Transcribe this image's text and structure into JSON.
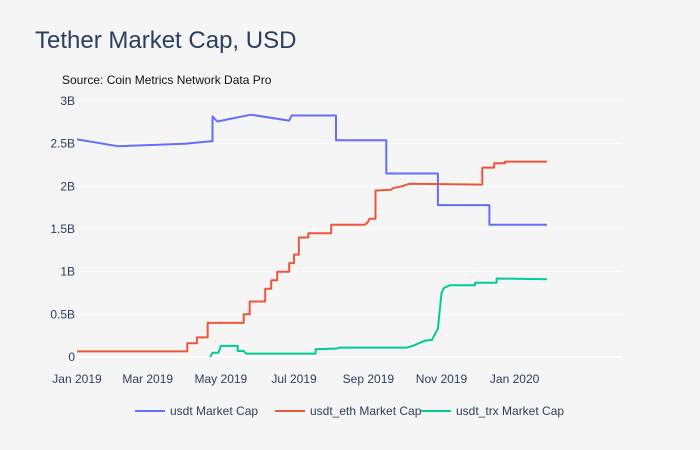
{
  "chart_data": {
    "type": "line",
    "title": "Tether Market Cap, USD",
    "annotation": "Source: Coin Metrics Network Data Pro",
    "xlabel": "",
    "ylabel": "",
    "xlim": [
      "2019-01-01",
      "2020-01-28"
    ],
    "ylim": [
      0,
      3000000000
    ],
    "x_ticks": [
      {
        "date": "2019-01-01",
        "label": "Jan 2019"
      },
      {
        "date": "2019-03-01",
        "label": "Mar 2019"
      },
      {
        "date": "2019-05-01",
        "label": "May 2019"
      },
      {
        "date": "2019-07-01",
        "label": "Jul 2019"
      },
      {
        "date": "2019-09-01",
        "label": "Sep 2019"
      },
      {
        "date": "2019-11-01",
        "label": "Nov 2019"
      },
      {
        "date": "2020-01-01",
        "label": "Jan 2020"
      }
    ],
    "y_ticks": [
      {
        "value": 0,
        "label": "0"
      },
      {
        "value": 500000000,
        "label": "0.5B"
      },
      {
        "value": 1000000000,
        "label": "1B"
      },
      {
        "value": 1500000000,
        "label": "1.5B"
      },
      {
        "value": 2000000000,
        "label": "2B"
      },
      {
        "value": 2500000000,
        "label": "2.5B"
      },
      {
        "value": 3000000000,
        "label": "3B"
      }
    ],
    "grid": true,
    "legend_position": "bottom",
    "series": [
      {
        "name": "usdt Market Cap",
        "color": "#636efa",
        "points": [
          [
            "2019-01-01",
            2550000000.0
          ],
          [
            "2019-02-04",
            2470000000.0
          ],
          [
            "2019-04-01",
            2500000000.0
          ],
          [
            "2019-04-24",
            2530000000.0
          ],
          [
            "2019-04-24",
            2820000000.0
          ],
          [
            "2019-04-28",
            2760000000.0
          ],
          [
            "2019-05-26",
            2840000000.0
          ],
          [
            "2019-06-27",
            2770000000.0
          ],
          [
            "2019-06-29",
            2830000000.0
          ],
          [
            "2019-08-05",
            2830000000.0
          ],
          [
            "2019-08-05",
            2540000000.0
          ],
          [
            "2019-09-16",
            2540000000.0
          ],
          [
            "2019-09-16",
            2150000000.0
          ],
          [
            "2019-10-29",
            2150000000.0
          ],
          [
            "2019-10-29",
            1780000000.0
          ],
          [
            "2019-12-11",
            1780000000.0
          ],
          [
            "2019-12-11",
            1550000000.0
          ],
          [
            "2020-01-28",
            1550000000.0
          ]
        ]
      },
      {
        "name": "usdt_eth Market Cap",
        "color": "#ef553b",
        "points": [
          [
            "2019-01-01",
            66000000.0
          ],
          [
            "2019-04-03",
            66000000.0
          ],
          [
            "2019-04-03",
            160000000.0
          ],
          [
            "2019-04-11",
            160000000.0
          ],
          [
            "2019-04-11",
            230000000.0
          ],
          [
            "2019-04-20",
            230000000.0
          ],
          [
            "2019-04-20",
            400000000.0
          ],
          [
            "2019-05-20",
            400000000.0
          ],
          [
            "2019-05-20",
            500000000.0
          ],
          [
            "2019-05-25",
            500000000.0
          ],
          [
            "2019-05-25",
            650000000.0
          ],
          [
            "2019-06-07",
            650000000.0
          ],
          [
            "2019-06-07",
            800000000.0
          ],
          [
            "2019-06-12",
            800000000.0
          ],
          [
            "2019-06-12",
            900000000.0
          ],
          [
            "2019-06-17",
            900000000.0
          ],
          [
            "2019-06-17",
            1000000000.0
          ],
          [
            "2019-06-27",
            1000000000.0
          ],
          [
            "2019-06-27",
            1100000000.0
          ],
          [
            "2019-07-01",
            1100000000.0
          ],
          [
            "2019-07-01",
            1200000000.0
          ],
          [
            "2019-07-05",
            1200000000.0
          ],
          [
            "2019-07-05",
            1400000000.0
          ],
          [
            "2019-07-13",
            1400000000.0
          ],
          [
            "2019-07-13",
            1450000000.0
          ],
          [
            "2019-08-01",
            1450000000.0
          ],
          [
            "2019-08-01",
            1550000000.0
          ],
          [
            "2019-08-29",
            1550000000.0
          ],
          [
            "2019-08-31",
            1570000000.0
          ],
          [
            "2019-09-02",
            1620000000.0
          ],
          [
            "2019-09-07",
            1620000000.0
          ],
          [
            "2019-09-07",
            1950000000.0
          ],
          [
            "2019-09-20",
            1960000000.0
          ],
          [
            "2019-09-22",
            1980000000.0
          ],
          [
            "2019-09-29",
            2000000000.0
          ],
          [
            "2019-10-05",
            2030000000.0
          ],
          [
            "2019-12-05",
            2020000000.0
          ],
          [
            "2019-12-05",
            2220000000.0
          ],
          [
            "2019-12-15",
            2220000000.0
          ],
          [
            "2019-12-15",
            2270000000.0
          ],
          [
            "2019-12-24",
            2270000000.0
          ],
          [
            "2019-12-24",
            2290000000.0
          ],
          [
            "2020-01-28",
            2290000000.0
          ]
        ]
      },
      {
        "name": "usdt_trx Market Cap",
        "color": "#00cc96",
        "points": [
          [
            "2019-04-22",
            0.0
          ],
          [
            "2019-04-24",
            50000000.0
          ],
          [
            "2019-04-29",
            50000000.0
          ],
          [
            "2019-05-01",
            130000000.0
          ],
          [
            "2019-05-15",
            130000000.0
          ],
          [
            "2019-05-15",
            70000000.0
          ],
          [
            "2019-05-20",
            70000000.0
          ],
          [
            "2019-05-22",
            40000000.0
          ],
          [
            "2019-07-19",
            40000000.0
          ],
          [
            "2019-07-19",
            90000000.0
          ],
          [
            "2019-08-06",
            100000000.0
          ],
          [
            "2019-08-08",
            110000000.0
          ],
          [
            "2019-10-03",
            110000000.0
          ],
          [
            "2019-10-08",
            130000000.0
          ],
          [
            "2019-10-13",
            160000000.0
          ],
          [
            "2019-10-18",
            190000000.0
          ],
          [
            "2019-10-24",
            200000000.0
          ],
          [
            "2019-10-29",
            330000000.0
          ],
          [
            "2019-11-01",
            750000000.0
          ],
          [
            "2019-11-03",
            810000000.0
          ],
          [
            "2019-11-08",
            840000000.0
          ],
          [
            "2019-11-29",
            840000000.0
          ],
          [
            "2019-11-29",
            870000000.0
          ],
          [
            "2019-12-17",
            870000000.0
          ],
          [
            "2019-12-17",
            920000000.0
          ],
          [
            "2020-01-28",
            910000000.0
          ]
        ]
      }
    ]
  }
}
